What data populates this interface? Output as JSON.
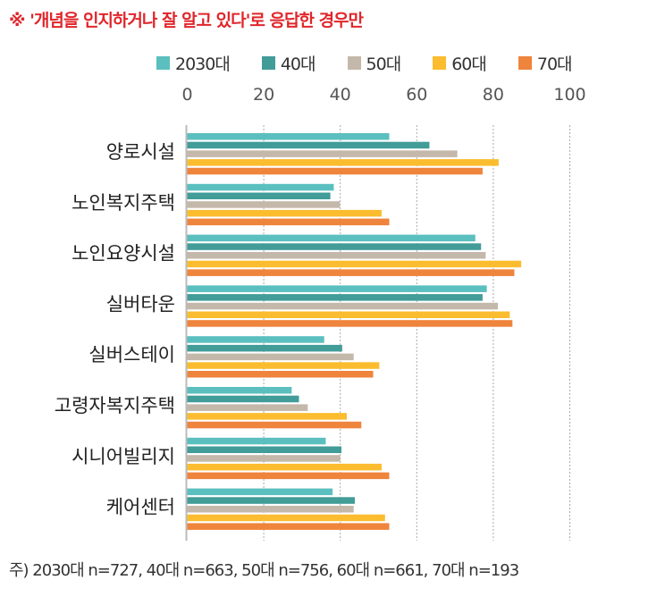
{
  "note": "※ '개념을 인지하거나 잘 알고 있다'로 응답한 경우만",
  "footnote": "주) 2030대 n=727, 40대 n=663, 50대 n=756, 60대 n=661, 70대 n=193",
  "chart_data": {
    "type": "bar",
    "orientation": "horizontal",
    "categories": [
      "양로시설",
      "노인복지주택",
      "노인요양시설",
      "실버타운",
      "실버스테이",
      "고령자복지주택",
      "시니어빌리지",
      "케어센터"
    ],
    "series": [
      {
        "name": "2030대",
        "color": "#5bbfbf",
        "values": [
          52.8,
          38.3,
          75.3,
          78.3,
          35.8,
          27.3,
          36.2,
          38.0
        ]
      },
      {
        "name": "40대",
        "color": "#429c98",
        "values": [
          63.3,
          37.4,
          76.8,
          77.2,
          40.5,
          29.2,
          40.3,
          43.8
        ]
      },
      {
        "name": "50대",
        "color": "#c4b8ab",
        "values": [
          70.6,
          39.9,
          78.0,
          81.2,
          43.5,
          31.5,
          40.0,
          43.5
        ]
      },
      {
        "name": "60대",
        "color": "#fbbd2f",
        "values": [
          81.4,
          50.8,
          87.3,
          84.3,
          50.2,
          41.7,
          50.8,
          51.7
        ]
      },
      {
        "name": "70대",
        "color": "#ef843c",
        "values": [
          77.2,
          52.8,
          85.5,
          85.0,
          48.6,
          45.5,
          52.8,
          52.8
        ]
      }
    ],
    "xlim": [
      0,
      100
    ],
    "ticks": [
      "0",
      "20",
      "40",
      "60",
      "80",
      "100"
    ],
    "grid": true,
    "legend": "top"
  }
}
